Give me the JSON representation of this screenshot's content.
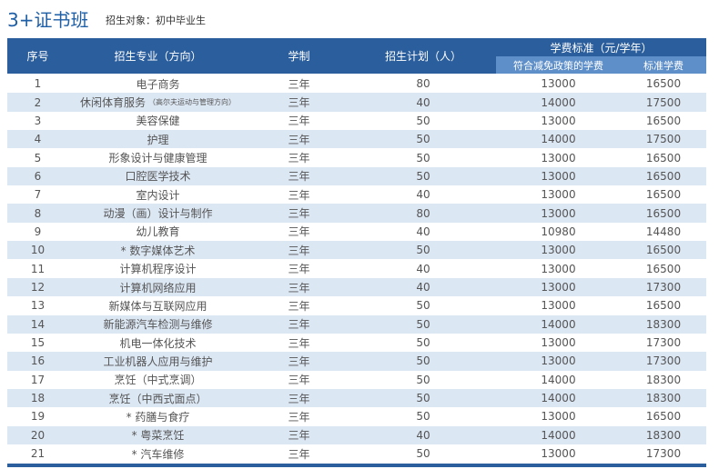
{
  "header": {
    "title": "3+证书班",
    "subtitle": "招生对象：初中毕业生"
  },
  "table": {
    "columns": {
      "no": "序号",
      "major": "招生专业（方向）",
      "years": "学制",
      "plan": "招生计划（人）",
      "fee": "学费标准（元/学年）",
      "reduced": "符合减免政策的学费",
      "standard": "标准学费"
    },
    "rows": [
      {
        "no": 1,
        "major": "电子商务",
        "years": "三年",
        "plan": 80,
        "reduced": 13000,
        "standard": 16500
      },
      {
        "no": 2,
        "major": "休闲体育服务",
        "major_note": "（高尔夫运动与管理方向）",
        "years": "三年",
        "plan": 40,
        "reduced": 14000,
        "standard": 17500
      },
      {
        "no": 3,
        "major": "美容保健",
        "years": "三年",
        "plan": 50,
        "reduced": 13000,
        "standard": 16500
      },
      {
        "no": 4,
        "major": "护理",
        "years": "三年",
        "plan": 50,
        "reduced": 14000,
        "standard": 17500
      },
      {
        "no": 5,
        "major": "形象设计与健康管理",
        "years": "三年",
        "plan": 50,
        "reduced": 13000,
        "standard": 16500
      },
      {
        "no": 6,
        "major": "口腔医学技术",
        "years": "三年",
        "plan": 50,
        "reduced": 13000,
        "standard": 16500
      },
      {
        "no": 7,
        "major": "室内设计",
        "years": "三年",
        "plan": 40,
        "reduced": 13000,
        "standard": 16500
      },
      {
        "no": 8,
        "major": "动漫（画）设计与制作",
        "years": "三年",
        "plan": 80,
        "reduced": 13000,
        "standard": 16500
      },
      {
        "no": 9,
        "major": "幼儿教育",
        "years": "三年",
        "plan": 40,
        "reduced": 10980,
        "standard": 14480
      },
      {
        "no": 10,
        "major": "* 数字媒体艺术",
        "years": "三年",
        "plan": 50,
        "reduced": 13000,
        "standard": 16500
      },
      {
        "no": 11,
        "major": "计算机程序设计",
        "years": "三年",
        "plan": 40,
        "reduced": 13000,
        "standard": 16500
      },
      {
        "no": 12,
        "major": "计算机网络应用",
        "years": "三年",
        "plan": 40,
        "reduced": 13000,
        "standard": 17300
      },
      {
        "no": 13,
        "major": "新媒体与互联网应用",
        "years": "三年",
        "plan": 50,
        "reduced": 13000,
        "standard": 16500
      },
      {
        "no": 14,
        "major": "新能源汽车检测与维修",
        "years": "三年",
        "plan": 50,
        "reduced": 14000,
        "standard": 18300
      },
      {
        "no": 15,
        "major": "机电一体化技术",
        "years": "三年",
        "plan": 50,
        "reduced": 13000,
        "standard": 17300
      },
      {
        "no": 16,
        "major": "工业机器人应用与维护",
        "years": "三年",
        "plan": 50,
        "reduced": 13000,
        "standard": 17300
      },
      {
        "no": 17,
        "major": "烹饪（中式烹调）",
        "years": "三年",
        "plan": 50,
        "reduced": 14000,
        "standard": 18300
      },
      {
        "no": 18,
        "major": "烹饪（中西式面点）",
        "years": "三年",
        "plan": 50,
        "reduced": 14000,
        "standard": 18300
      },
      {
        "no": 19,
        "major": "* 药膳与食疗",
        "years": "三年",
        "plan": 50,
        "reduced": 13000,
        "standard": 16500
      },
      {
        "no": 20,
        "major": "* 粤菜烹饪",
        "years": "三年",
        "plan": 40,
        "reduced": 14000,
        "standard": 18300
      },
      {
        "no": 21,
        "major": "* 汽车维修",
        "years": "三年",
        "plan": 50,
        "reduced": 13000,
        "standard": 17300
      }
    ]
  }
}
